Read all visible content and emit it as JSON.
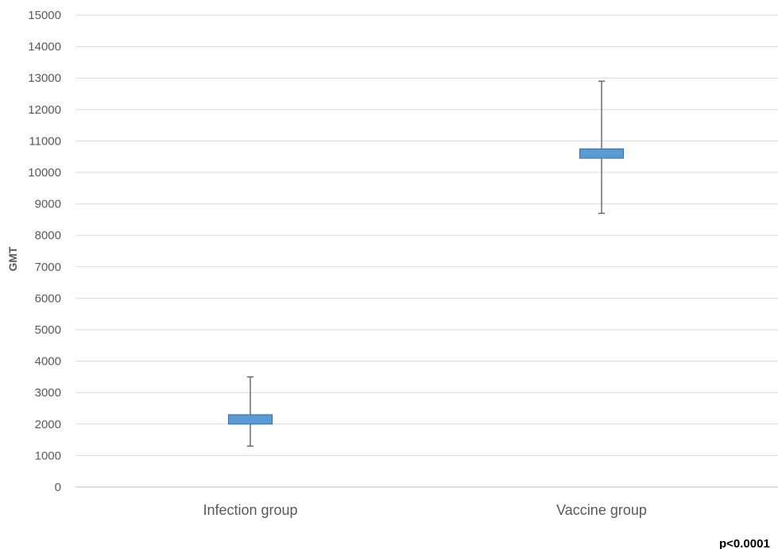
{
  "chart_data": {
    "type": "box",
    "ylabel": "GMT",
    "ylim": [
      0,
      15000
    ],
    "ytick_step": 1000,
    "grid": true,
    "categories": [
      "Infection group",
      "Vaccine group"
    ],
    "boxes": [
      {
        "category": "Infection group",
        "low": 1300,
        "box_low": 2000,
        "box_high": 2300,
        "high": 3500
      },
      {
        "category": "Vaccine group",
        "low": 8700,
        "box_low": 10450,
        "box_high": 10750,
        "high": 12900
      }
    ],
    "annotation": "p<0.0001",
    "colors": {
      "box_fill": "#5B9BD5",
      "box_stroke": "#3A6F9F",
      "whisker": "#595959",
      "grid": "#D9D9D9",
      "text": "#595959"
    }
  }
}
